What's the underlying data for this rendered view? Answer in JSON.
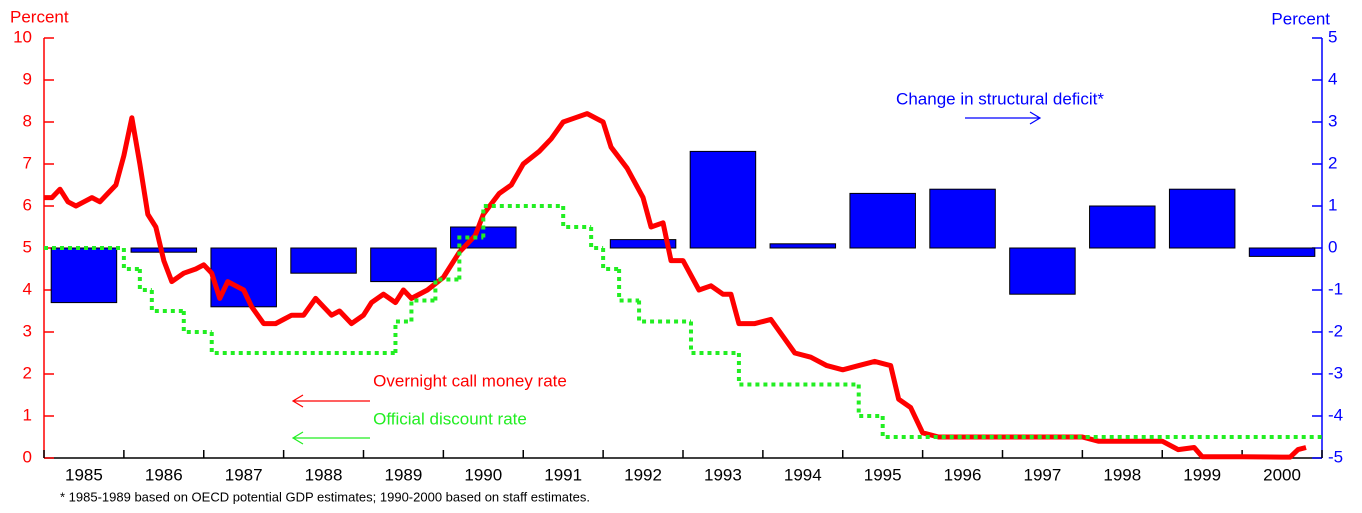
{
  "chart_data": {
    "type": "combo",
    "left_axis_label": "Percent",
    "right_axis_label": "Percent",
    "footnote": "* 1985-1989 based on OECD potential GDP estimates; 1990-2000 based on staff estimates.",
    "categories": [
      "1985",
      "1986",
      "1987",
      "1988",
      "1989",
      "1990",
      "1991",
      "1992",
      "1993",
      "1994",
      "1995",
      "1996",
      "1997",
      "1998",
      "1999",
      "2000"
    ],
    "xlim": [
      1985,
      2001
    ],
    "ylim": [
      0,
      10
    ],
    "yticks": [
      0,
      1,
      2,
      3,
      4,
      5,
      6,
      7,
      8,
      9,
      10
    ],
    "y2lim": [
      -5,
      5
    ],
    "y2ticks": [
      -5,
      -4,
      -3,
      -2,
      -1,
      0,
      1,
      2,
      3,
      4,
      5
    ],
    "series": [
      {
        "name": "Change in structural deficit*",
        "type": "bar",
        "axis": "y2",
        "color": "#0000ff",
        "values": [
          -1.3,
          -0.1,
          -1.4,
          -0.6,
          -0.8,
          0.5,
          null,
          0.2,
          2.3,
          0.1,
          1.3,
          1.4,
          -1.1,
          1.0,
          1.4,
          -0.2
        ]
      },
      {
        "name": "Overnight call money rate",
        "type": "line",
        "color": "#ff0000",
        "x": [
          1985.0,
          1985.1,
          1985.2,
          1985.3,
          1985.4,
          1985.5,
          1985.6,
          1985.7,
          1985.8,
          1985.9,
          1986.0,
          1986.1,
          1986.2,
          1986.3,
          1986.4,
          1986.5,
          1986.6,
          1986.75,
          1986.9,
          1987.0,
          1987.1,
          1987.2,
          1987.3,
          1987.4,
          1987.5,
          1987.6,
          1987.75,
          1987.9,
          1988.0,
          1988.1,
          1988.25,
          1988.4,
          1988.5,
          1988.6,
          1988.7,
          1988.85,
          1989.0,
          1989.1,
          1989.25,
          1989.4,
          1989.5,
          1989.6,
          1989.8,
          1990.0,
          1990.2,
          1990.4,
          1990.5,
          1990.7,
          1990.85,
          1991.0,
          1991.2,
          1991.35,
          1991.5,
          1991.65,
          1991.8,
          1992.0,
          1992.1,
          1992.3,
          1992.5,
          1992.6,
          1992.75,
          1992.85,
          1993.0,
          1993.2,
          1993.35,
          1993.5,
          1993.6,
          1993.7,
          1993.9,
          1994.1,
          1994.25,
          1994.4,
          1994.6,
          1994.8,
          1995.0,
          1995.2,
          1995.4,
          1995.6,
          1995.7,
          1995.85,
          1996.0,
          1996.2,
          1997.0,
          1998.0,
          1998.2,
          1999.0,
          1999.2,
          1999.4,
          1999.5,
          2000.0,
          2000.5,
          2000.6,
          2000.7,
          2000.8
        ],
        "values": [
          6.2,
          6.2,
          6.4,
          6.1,
          6.0,
          6.1,
          6.2,
          6.1,
          6.3,
          6.5,
          7.2,
          8.1,
          7.0,
          5.8,
          5.5,
          4.7,
          4.2,
          4.4,
          4.5,
          4.6,
          4.4,
          3.8,
          4.2,
          4.1,
          4.0,
          3.6,
          3.2,
          3.2,
          3.3,
          3.4,
          3.4,
          3.8,
          3.6,
          3.4,
          3.5,
          3.2,
          3.4,
          3.7,
          3.9,
          3.7,
          4.0,
          3.8,
          4.0,
          4.3,
          4.9,
          5.3,
          5.8,
          6.3,
          6.5,
          7.0,
          7.3,
          7.6,
          8.0,
          8.1,
          8.2,
          8.0,
          7.4,
          6.9,
          6.2,
          5.5,
          5.6,
          4.7,
          4.7,
          4.0,
          4.1,
          3.9,
          3.9,
          3.2,
          3.2,
          3.3,
          2.9,
          2.5,
          2.4,
          2.2,
          2.1,
          2.2,
          2.3,
          2.2,
          1.4,
          1.2,
          0.6,
          0.5,
          0.5,
          0.5,
          0.4,
          0.4,
          0.2,
          0.25,
          0.03,
          0.03,
          0.02,
          0.02,
          0.2,
          0.25
        ]
      },
      {
        "name": "Official discount rate",
        "type": "step",
        "color": "#22ee22",
        "x": [
          1985,
          1986.0,
          1986.2,
          1986.35,
          1986.75,
          1987.1,
          1989.4,
          1989.6,
          1989.9,
          1990.2,
          1990.5,
          1991.5,
          1991.85,
          1992.0,
          1992.2,
          1992.45,
          1993.1,
          1993.7,
          1995.2,
          1995.5,
          2001
        ],
        "values": [
          5.0,
          4.5,
          4.0,
          3.5,
          3.0,
          2.5,
          3.25,
          3.75,
          4.25,
          5.25,
          6.0,
          5.5,
          5.0,
          4.5,
          3.75,
          3.25,
          2.5,
          1.75,
          1.0,
          0.5,
          0.5
        ]
      }
    ]
  }
}
